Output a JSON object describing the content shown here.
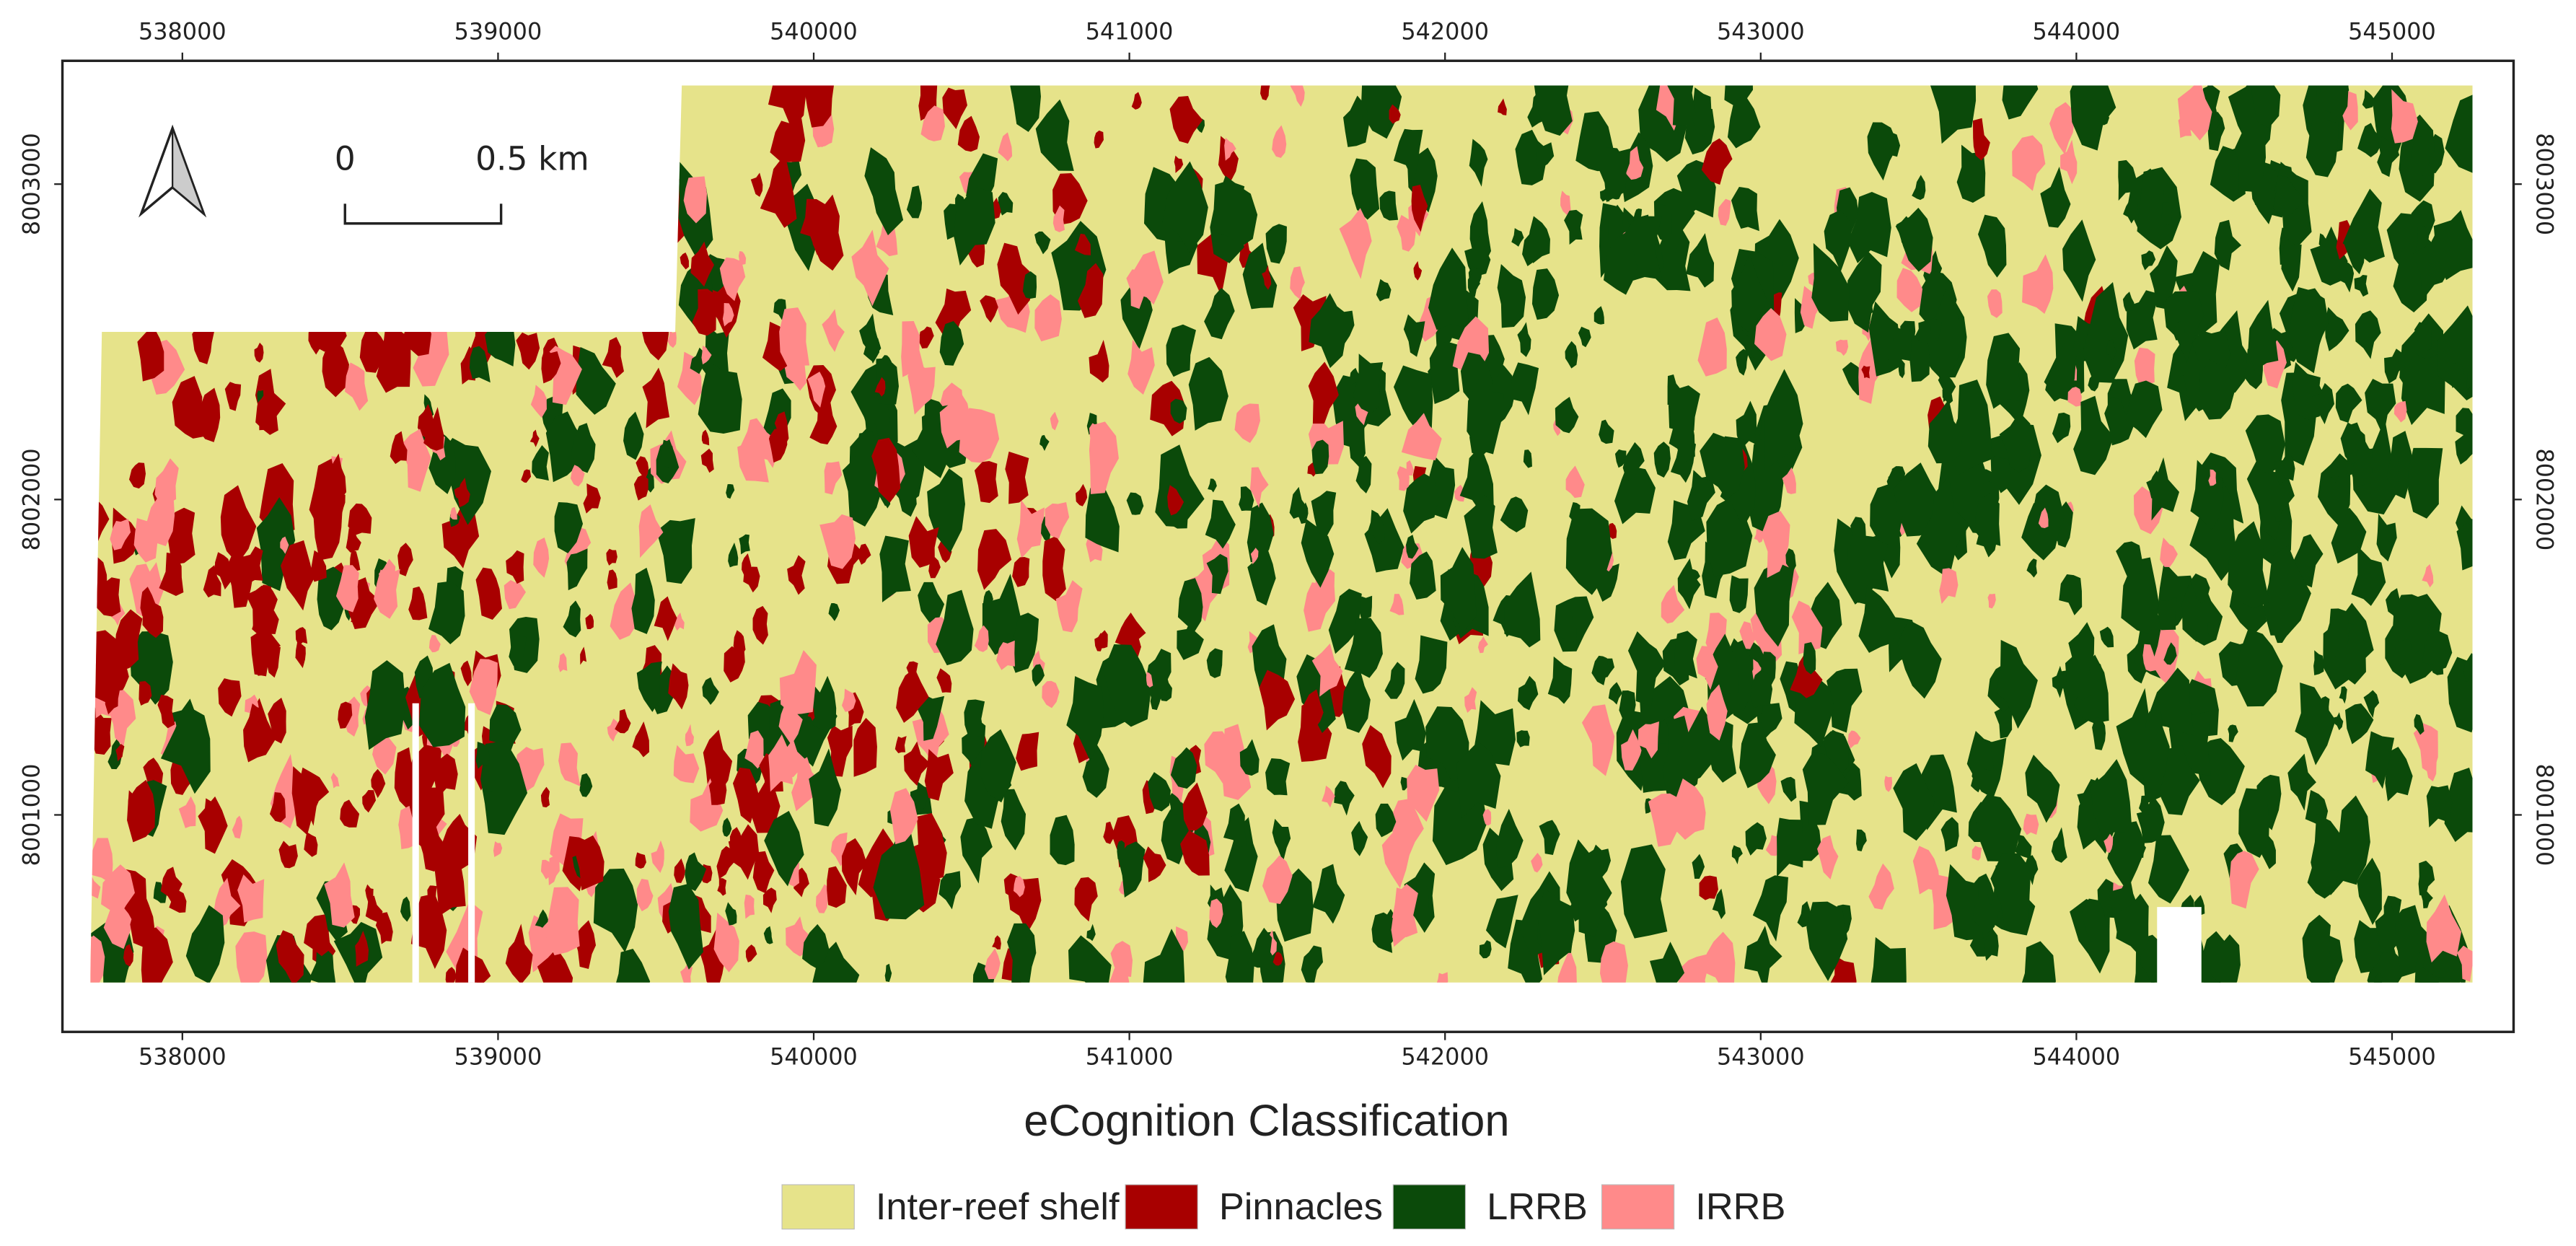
{
  "map": {
    "title": "eCognition Classification",
    "xlim": [
      537620,
      545385
    ],
    "ylim": [
      8000312,
      8003391
    ],
    "x_ticks": [
      538000,
      539000,
      540000,
      541000,
      542000,
      543000,
      544000,
      545000
    ],
    "y_ticks": [
      8001000,
      8002000,
      8003000
    ],
    "scale_bar": {
      "labels": [
        "0",
        "0.5 km"
      ]
    },
    "legend": [
      {
        "label": "Inter-reef shelf",
        "color": "#e6e38a"
      },
      {
        "label": "Pinnacles",
        "color": "#a80000"
      },
      {
        "label": "LRRB",
        "color": "#0b4a0a"
      },
      {
        "label": "IRRB",
        "color": "#ff8a8a"
      }
    ]
  }
}
